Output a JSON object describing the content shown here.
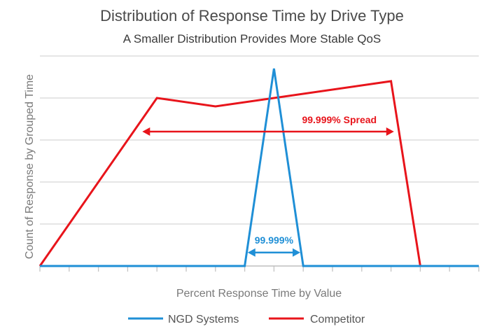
{
  "chart_data": {
    "type": "line",
    "title": "Distribution of Response Time by Drive Type",
    "subtitle": "A Smaller Distribution Provides More Stable QoS",
    "xlabel": "Percent Response Time by Value",
    "ylabel": "Count of Response by Grouped Time",
    "xlim": [
      0,
      15
    ],
    "ylim": [
      0,
      5
    ],
    "grid": true,
    "legend_position": "bottom",
    "x_ticks": 15,
    "series": [
      {
        "name": "NGD Systems",
        "color": "#1f8fd6",
        "x": [
          0,
          7,
          8,
          9,
          15
        ],
        "y": [
          0,
          0,
          4.7,
          0,
          0
        ]
      },
      {
        "name": "Competitor",
        "color": "#e8141b",
        "x": [
          0,
          4,
          6,
          12,
          13,
          15
        ],
        "y": [
          0,
          4.0,
          3.8,
          4.4,
          0,
          0
        ]
      }
    ],
    "annotations": [
      {
        "text": "99.999% Spread",
        "color": "#e8141b",
        "x_start": 3.5,
        "x_end": 12.1,
        "y": 3.2
      },
      {
        "text": "99.999%",
        "color": "#1f8fd6",
        "x_start": 7.1,
        "x_end": 8.9,
        "y": 0.32
      }
    ]
  }
}
